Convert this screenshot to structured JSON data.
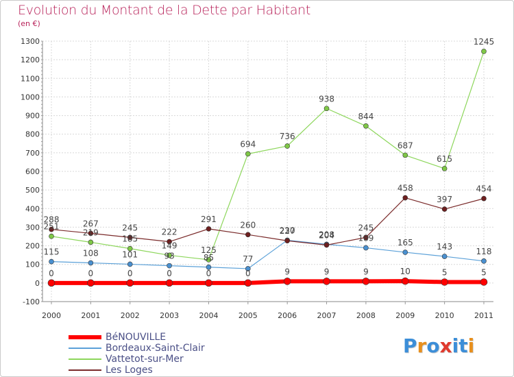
{
  "title": "Evolution du Montant de la Dette par Habitant",
  "subtitle": "(en €)",
  "logo": {
    "text": "Proxiti",
    "letters": [
      "P",
      "r",
      "o",
      "x",
      "i",
      "t",
      "i"
    ],
    "colors": [
      "#3c8ed8",
      "#e8901e",
      "#3c8ed8",
      "#e03a2e",
      "#3c8ed8",
      "#3c8ed8",
      "#e8901e"
    ]
  },
  "chart_data": {
    "type": "line",
    "x": [
      "2000",
      "2001",
      "2002",
      "2003",
      "2004",
      "2005",
      "2006",
      "2007",
      "2008",
      "2009",
      "2010",
      "2011"
    ],
    "ylim": [
      -100,
      1300
    ],
    "yticks": [
      -100,
      0,
      100,
      200,
      300,
      400,
      500,
      600,
      700,
      800,
      900,
      1000,
      1100,
      1200,
      1300
    ],
    "grid": true,
    "legend_position": "bottom-left",
    "series": [
      {
        "name": "Vattetot-sur-Mer",
        "color": "#8cd65a",
        "marker": "#7fc847",
        "width": 1.2,
        "values": [
          251,
          219,
          185,
          149,
          125,
          694,
          736,
          938,
          844,
          687,
          615,
          1245
        ]
      },
      {
        "name": "Bordeaux-Saint-Clair",
        "color": "#5aa0d8",
        "marker": "#4a90d0",
        "width": 1.2,
        "values": [
          115,
          108,
          101,
          93,
          85,
          77,
          230,
          208,
          189,
          165,
          143,
          118
        ]
      },
      {
        "name": "Les Loges",
        "color": "#7a2a2a",
        "marker": "#6e1f1f",
        "width": 1.2,
        "values": [
          288,
          267,
          245,
          222,
          291,
          260,
          227,
          204,
          245,
          458,
          397,
          454
        ]
      },
      {
        "name": "BéNOUVILLE",
        "color": "#ff0000",
        "marker": "#ff0000",
        "width": 6,
        "values": [
          0,
          0,
          0,
          0,
          0,
          0,
          9,
          9,
          9,
          10,
          5,
          5
        ]
      }
    ]
  },
  "legend": [
    {
      "label": "BéNOUVILLE",
      "color": "#ff0000"
    },
    {
      "label": "Bordeaux-Saint-Clair",
      "color": "#5aa0d8"
    },
    {
      "label": "Vattetot-sur-Mer",
      "color": "#8cd65a"
    },
    {
      "label": "Les Loges",
      "color": "#7a2a2a"
    }
  ]
}
